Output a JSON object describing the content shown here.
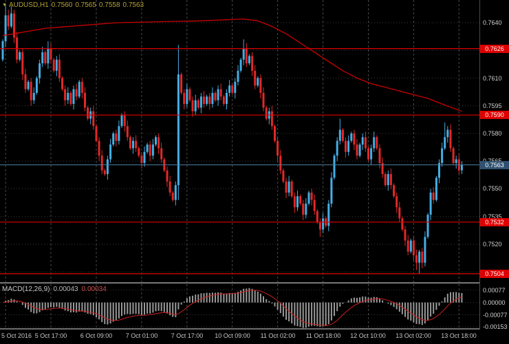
{
  "header": {
    "marker": "▼",
    "title": "AUDUSD,H1",
    "open": "0.7560",
    "high": "0.7565",
    "low": "0.7558",
    "close": "0.7563"
  },
  "macd_header": {
    "title": "MACD(12,26,9)",
    "main": "0.00043",
    "signal": "0.00034"
  },
  "chart_data": {
    "type": "candlestick",
    "title": "AUDUSD H1 chart with MACD(12,26,9) sub-window",
    "symbol": "AUDUSD",
    "timeframe": "H1",
    "ylim": [
      0.74995,
      0.76523
    ],
    "grid_prices": [
      0.764,
      0.7625,
      0.761,
      0.7595,
      0.758,
      0.7565,
      0.755,
      0.7535,
      0.752,
      0.7505
    ],
    "axis_labels": [
      [
        0.764,
        "0.7640"
      ],
      [
        0.761,
        "0.7610"
      ],
      [
        0.7595,
        "0.7595"
      ],
      [
        0.758,
        "0.7580"
      ],
      [
        0.7565,
        "0.7565"
      ],
      [
        0.755,
        "0.7550"
      ],
      [
        0.7535,
        "0.7535"
      ],
      [
        0.752,
        "0.7520"
      ]
    ],
    "up_color": "#45aee5",
    "down_color": "#e22828",
    "first_open": 0.762,
    "closes": [
      0.763,
      0.7644,
      0.7638,
      0.7645,
      0.7632,
      0.762,
      0.7624,
      0.7612,
      0.7604,
      0.7608,
      0.7598,
      0.7602,
      0.761,
      0.7618,
      0.7624,
      0.7618,
      0.7626,
      0.762,
      0.7614,
      0.762,
      0.761,
      0.7604,
      0.7598,
      0.7602,
      0.7596,
      0.7604,
      0.76,
      0.7608,
      0.7602,
      0.7594,
      0.7588,
      0.7592,
      0.7584,
      0.7576,
      0.7568,
      0.756,
      0.7558,
      0.7566,
      0.7574,
      0.758,
      0.7576,
      0.7584,
      0.759,
      0.7584,
      0.7578,
      0.7572,
      0.7576,
      0.7572,
      0.7568,
      0.7564,
      0.757,
      0.7574,
      0.7568,
      0.7574,
      0.7578,
      0.7572,
      0.7566,
      0.756,
      0.7554,
      0.7548,
      0.7544,
      0.7552,
      0.7612,
      0.7602,
      0.7596,
      0.7604,
      0.7598,
      0.7592,
      0.7598,
      0.7594,
      0.76,
      0.7596,
      0.76,
      0.7596,
      0.7602,
      0.7598,
      0.7604,
      0.76,
      0.7596,
      0.7602,
      0.7606,
      0.7602,
      0.7608,
      0.7614,
      0.762,
      0.7626,
      0.7618,
      0.7622,
      0.7614,
      0.7606,
      0.761,
      0.7602,
      0.7594,
      0.7588,
      0.7592,
      0.7584,
      0.7576,
      0.7568,
      0.756,
      0.7554,
      0.7548,
      0.7554,
      0.7546,
      0.754,
      0.7546,
      0.7542,
      0.7536,
      0.7542,
      0.7548,
      0.7544,
      0.7538,
      0.7532,
      0.7528,
      0.7534,
      0.753,
      0.7542,
      0.7556,
      0.7568,
      0.7576,
      0.7582,
      0.7576,
      0.757,
      0.7576,
      0.758,
      0.7574,
      0.7568,
      0.7574,
      0.7578,
      0.7572,
      0.7566,
      0.7572,
      0.7578,
      0.7572,
      0.7564,
      0.7558,
      0.7552,
      0.7558,
      0.7552,
      0.7546,
      0.754,
      0.7534,
      0.7528,
      0.7522,
      0.7516,
      0.7522,
      0.7514,
      0.751,
      0.7516,
      0.751,
      0.7524,
      0.7536,
      0.7548,
      0.7544,
      0.7556,
      0.7564,
      0.7572,
      0.7578,
      0.7582,
      0.7572,
      0.7564,
      0.7566,
      0.756,
      0.7563
    ],
    "bar_overrides": {
      "1": {
        "h": 0.765
      },
      "3": {
        "h": 0.7649
      },
      "16": {
        "h": 0.763
      },
      "62": {
        "h": 0.7628,
        "l": 0.7544
      },
      "85": {
        "h": 0.7631
      },
      "112": {
        "l": 0.7524
      },
      "119": {
        "h": 0.7588
      },
      "146": {
        "l": 0.7506
      },
      "147": {
        "l": 0.7504
      },
      "148": {
        "l": 0.7507
      },
      "156": {
        "h": 0.7586
      },
      "162": {
        "h": 0.7565,
        "l": 0.7558
      }
    },
    "last_candle": {
      "open": 0.756,
      "high": 0.7565,
      "low": 0.7558,
      "close": 0.7563
    },
    "hlines": [
      {
        "price": 0.7626,
        "label": "0.7626"
      },
      {
        "price": 0.759,
        "label": "0.7590"
      },
      {
        "price": 0.7532,
        "label": "0.7532"
      },
      {
        "price": 0.7504,
        "label": "0.7504"
      }
    ],
    "hline_color": "#de0000",
    "current_price": {
      "price": 0.7563,
      "label": "0.7563",
      "line_color": "#4e7fa5",
      "badge_color": "#2f5070"
    },
    "ma_line": {
      "color": "#cc0000",
      "points": [
        [
          0,
          0.7633
        ],
        [
          15,
          0.7637
        ],
        [
          40,
          0.764
        ],
        [
          70,
          0.7641
        ],
        [
          85,
          0.7642
        ],
        [
          90,
          0.7641
        ],
        [
          95,
          0.7638
        ],
        [
          100,
          0.7634
        ],
        [
          105,
          0.7629
        ],
        [
          110,
          0.7624
        ],
        [
          115,
          0.7619
        ],
        [
          120,
          0.7614
        ],
        [
          125,
          0.761
        ],
        [
          130,
          0.7607
        ],
        [
          135,
          0.7605
        ],
        [
          140,
          0.7603
        ],
        [
          145,
          0.7601
        ],
        [
          150,
          0.7599
        ],
        [
          155,
          0.7596
        ],
        [
          162,
          0.7592
        ]
      ]
    },
    "time_labels": [
      {
        "text": "5 Oct 2016",
        "bar": 1
      },
      {
        "text": "5 Oct 17:00",
        "bar": 17
      },
      {
        "text": "6 Oct 09:00",
        "bar": 33
      },
      {
        "text": "7 Oct 01:00",
        "bar": 49
      },
      {
        "text": "7 Oct 17:00",
        "bar": 65
      },
      {
        "text": "10 Oct 09:00",
        "bar": 81
      },
      {
        "text": "11 Oct 02:00",
        "bar": 97
      },
      {
        "text": "11 Oct 18:00",
        "bar": 113
      },
      {
        "text": "12 Oct 10:00",
        "bar": 129
      },
      {
        "text": "13 Oct 02:00",
        "bar": 145
      },
      {
        "text": "13 Oct 18:00",
        "bar": 161
      }
    ],
    "macd": {
      "type": "macd",
      "title": "MACD(12,26,9)",
      "fast": 12,
      "slow": 26,
      "signal": 9,
      "display_main": "0.00043",
      "display_signal": "0.00034",
      "ylim": [
        -0.00161,
        0.00115
      ],
      "axis_labels": [
        [
          0.00077,
          "0.00077"
        ],
        [
          0,
          "0.00000"
        ],
        [
          -0.00077,
          "-0.00077"
        ],
        [
          -0.00153,
          "-0.00153"
        ]
      ],
      "histogram_color": "#9a9a9a",
      "signal_color": "#cc2020"
    }
  }
}
